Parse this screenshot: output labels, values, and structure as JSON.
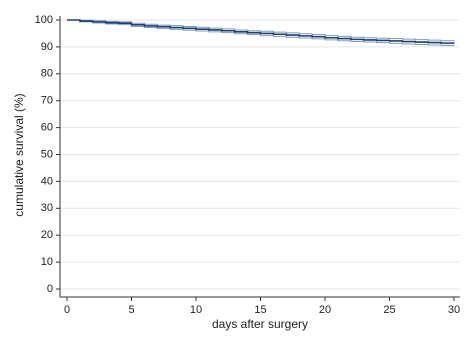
{
  "chart_data": {
    "type": "step",
    "x_label": "days after surgery",
    "y_label": "cumulative survival (%)",
    "x": [
      0,
      1,
      2,
      3,
      4,
      5,
      6,
      7,
      8,
      9,
      10,
      11,
      12,
      13,
      14,
      15,
      16,
      17,
      18,
      19,
      20,
      21,
      22,
      23,
      24,
      25,
      26,
      27,
      28,
      29,
      30
    ],
    "series": [
      {
        "color": "#1f3f6e",
        "values": [
          100,
          99.6,
          99.3,
          99,
          98.8,
          98.2,
          97.8,
          97.5,
          97.2,
          96.9,
          96.6,
          96.3,
          96,
          95.6,
          95.3,
          95,
          94.7,
          94.4,
          94.1,
          93.8,
          93.4,
          93.1,
          92.8,
          92.6,
          92.4,
          92.2,
          92,
          91.8,
          91.6,
          91.4,
          91.2
        ]
      },
      {
        "color": "#7f9cc0",
        "values": [
          100,
          99.3,
          98.9,
          98.5,
          98.3,
          97.6,
          97.2,
          96.9,
          96.5,
          96.2,
          95.9,
          95.6,
          95.3,
          94.9,
          94.6,
          94.2,
          93.9,
          93.6,
          93.3,
          93,
          92.6,
          92.3,
          92,
          91.8,
          91.6,
          91.3,
          91.1,
          90.9,
          90.7,
          90.5,
          90.3
        ]
      },
      {
        "color": "#7f9cc0",
        "values": [
          100,
          99.9,
          99.7,
          99.5,
          99.3,
          98.8,
          98.4,
          98.1,
          97.9,
          97.6,
          97.3,
          97,
          96.7,
          96.3,
          96,
          95.8,
          95.5,
          95.2,
          94.9,
          94.6,
          94.2,
          93.9,
          93.6,
          93.4,
          93.2,
          93.1,
          92.9,
          92.7,
          92.5,
          92.3,
          92.1
        ]
      }
    ],
    "xlim": [
      0,
      30
    ],
    "xticks": [
      0,
      5,
      10,
      15,
      20,
      25,
      30
    ],
    "ylim": [
      0,
      100
    ],
    "yticks": [
      0,
      10,
      20,
      30,
      40,
      50,
      60,
      70,
      80,
      90,
      100
    ],
    "grid": true
  }
}
